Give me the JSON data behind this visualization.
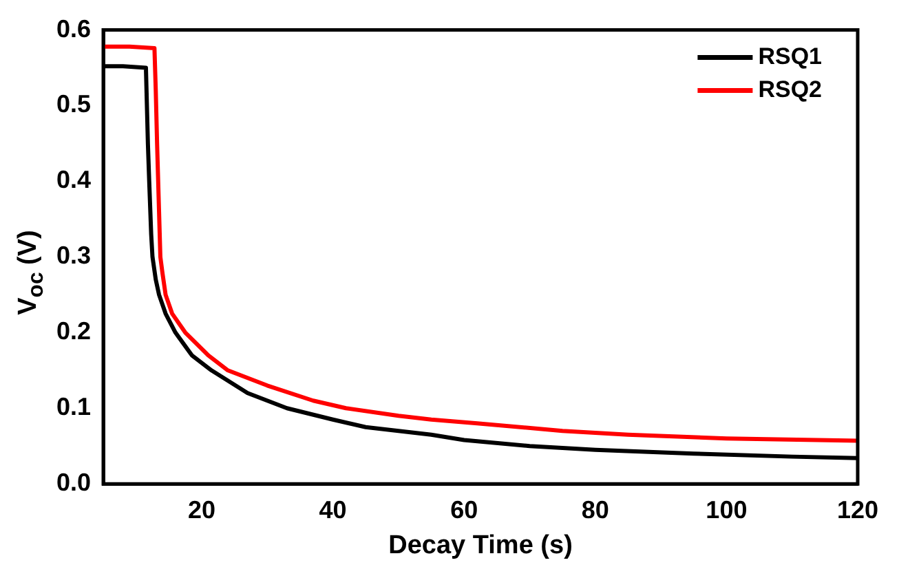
{
  "chart_data": {
    "type": "line",
    "xlabel": "Decay Time (s)",
    "ylabel": "V$_{oc}$ (V)",
    "xlim": [
      5,
      120
    ],
    "xticks": [
      20,
      40,
      60,
      80,
      100,
      120
    ],
    "ylim": [
      0,
      0.6
    ],
    "yticks": [
      {
        "value": 0,
        "label": "0.0"
      },
      0.1,
      0.2,
      0.3,
      0.4,
      0.5,
      0.6
    ],
    "grid": false,
    "legend": "top right",
    "marker": "none",
    "line_style": "solid",
    "series": [
      {
        "name": "RSQ1",
        "color": "#000000",
        "x": [
          5,
          8,
          11.5,
          11.8,
          12,
          12.3,
          12.5,
          13,
          13.5,
          14.5,
          16,
          18.5,
          21.5,
          27,
          33,
          40,
          45,
          55,
          60,
          70,
          80,
          95,
          110,
          120
        ],
        "values": [
          0.552,
          0.552,
          0.55,
          0.45,
          0.4,
          0.33,
          0.3,
          0.27,
          0.25,
          0.225,
          0.2,
          0.17,
          0.15,
          0.12,
          0.1,
          0.085,
          0.075,
          0.065,
          0.058,
          0.05,
          0.045,
          0.04,
          0.036,
          0.034
        ]
      },
      {
        "name": "RSQ2",
        "color": "#ff0000",
        "x": [
          5,
          9,
          12.8,
          13.0,
          13.2,
          13.5,
          13.7,
          14,
          14.5,
          15.5,
          17.5,
          21,
          24,
          30,
          37,
          42,
          50,
          55,
          62,
          75,
          85,
          100,
          120
        ],
        "values": [
          0.578,
          0.578,
          0.576,
          0.52,
          0.45,
          0.36,
          0.3,
          0.28,
          0.25,
          0.225,
          0.2,
          0.17,
          0.15,
          0.13,
          0.11,
          0.1,
          0.09,
          0.085,
          0.08,
          0.07,
          0.065,
          0.06,
          0.057
        ]
      }
    ]
  }
}
